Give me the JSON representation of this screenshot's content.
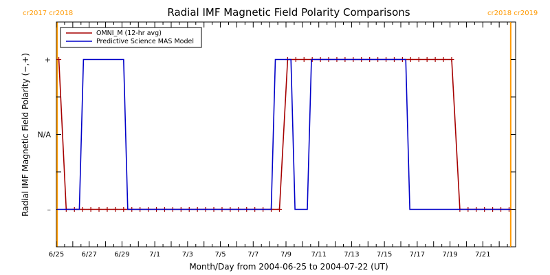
{
  "chart_data": {
    "type": "line",
    "title": "Radial IMF Magnetic Field Polarity Comparisons",
    "xlabel": "Month/Day from 2004-06-25 to 2004-07-22 (UT)",
    "ylabel": "Radial IMF Magnetic Field Polarity (−,+)",
    "x_unit": "days since 2004-06-25 00:00 UT",
    "xlim": [
      0,
      28
    ],
    "ylim": [
      -1.5,
      1.5
    ],
    "x_ticks": [
      {
        "x": 0,
        "label": "6/25"
      },
      {
        "x": 2,
        "label": "6/27"
      },
      {
        "x": 4,
        "label": "6/29"
      },
      {
        "x": 6,
        "label": "7/1"
      },
      {
        "x": 8,
        "label": "7/3"
      },
      {
        "x": 10,
        "label": "7/5"
      },
      {
        "x": 12,
        "label": "7/7"
      },
      {
        "x": 14,
        "label": "7/9"
      },
      {
        "x": 16,
        "label": "7/11"
      },
      {
        "x": 18,
        "label": "7/13"
      },
      {
        "x": 20,
        "label": "7/15"
      },
      {
        "x": 22,
        "label": "7/17"
      },
      {
        "x": 24,
        "label": "7/19"
      },
      {
        "x": 26,
        "label": "7/21"
      }
    ],
    "y_ticks": [
      {
        "y": 1,
        "label": "+"
      },
      {
        "y": 0,
        "label": "N/A"
      },
      {
        "y": -1,
        "label": "–"
      }
    ],
    "corner_labels": {
      "left": "cr2017  cr2018",
      "right": "cr2018  cr2019"
    },
    "carrington_boundaries": [
      0.05,
      27.7
    ],
    "boundary_color": "#ff9900",
    "legend_position": "top-left",
    "series": [
      {
        "name": "OMNI_M (12-hr avg)",
        "color": "#a50000",
        "marker": "+",
        "x": [
          0.15,
          0.6,
          1.1,
          1.6,
          2.1,
          2.6,
          3.1,
          3.6,
          4.1,
          4.6,
          5.1,
          5.6,
          6.1,
          6.6,
          7.1,
          7.6,
          8.1,
          8.6,
          9.1,
          9.6,
          10.1,
          10.6,
          11.1,
          11.6,
          12.1,
          12.6,
          13.1,
          13.6,
          14.1,
          14.6,
          15.1,
          15.6,
          16.1,
          16.6,
          17.1,
          17.6,
          18.1,
          18.6,
          19.1,
          19.6,
          20.1,
          20.6,
          21.1,
          21.6,
          22.1,
          22.6,
          23.1,
          23.6,
          24.1,
          24.6,
          25.1,
          25.6,
          26.1,
          26.6,
          27.1,
          27.6
        ],
        "y": [
          1,
          -1,
          -1,
          -1,
          -1,
          -1,
          -1,
          -1,
          -1,
          -1,
          -1,
          -1,
          -1,
          -1,
          -1,
          -1,
          -1,
          -1,
          -1,
          -1,
          -1,
          -1,
          -1,
          -1,
          -1,
          -1,
          -1,
          -1,
          1,
          1,
          1,
          1,
          1,
          1,
          1,
          1,
          1,
          1,
          1,
          1,
          1,
          1,
          1,
          1,
          1,
          1,
          1,
          1,
          1,
          -1,
          -1,
          -1,
          -1,
          -1,
          -1,
          -1
        ]
      },
      {
        "name": "Predictive Science MAS Model",
        "color": "#0000c8",
        "x": [
          0.05,
          1.4,
          1.65,
          4.1,
          4.35,
          13.1,
          13.35,
          14.3,
          14.55,
          15.3,
          15.55,
          21.3,
          21.55,
          27.7
        ],
        "y": [
          -1,
          -1,
          1,
          1,
          -1,
          -1,
          1,
          1,
          -1,
          -1,
          1,
          1,
          -1,
          -1
        ]
      }
    ]
  }
}
